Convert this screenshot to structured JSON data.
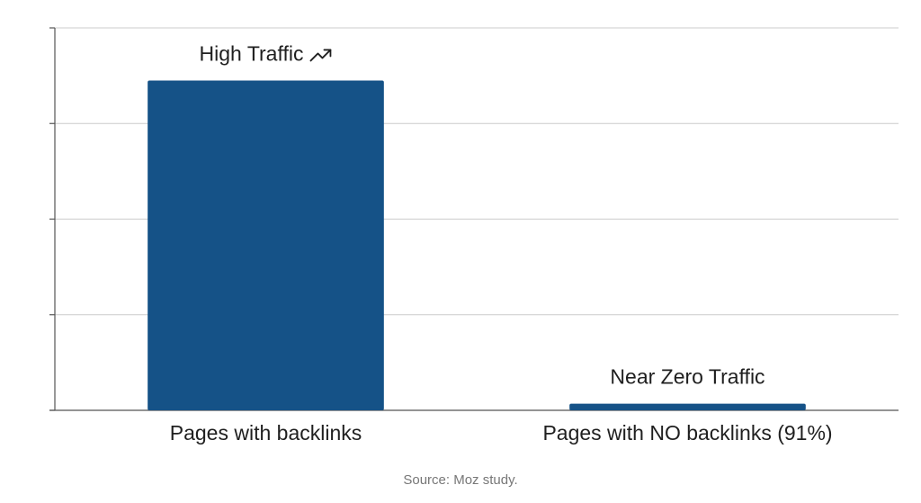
{
  "chart_data": {
    "type": "bar",
    "categories": [
      "Pages with backlinks",
      "Pages with NO backlinks (91%)"
    ],
    "values": [
      3.45,
      0.07
    ],
    "data_labels": [
      "High Traffic",
      "Near Zero Traffic"
    ],
    "data_label_icons": [
      "trending-up-icon",
      ""
    ],
    "ylim": [
      0,
      4
    ],
    "y_ticks": [
      0,
      1,
      2,
      3,
      4
    ],
    "grid": true,
    "tick_labels_visible": false,
    "title": "",
    "xlabel": "",
    "ylabel": "",
    "source": "Source: Moz study.",
    "colors": {
      "bar": "#155287",
      "grid": "#cccccc",
      "axis": "#555555",
      "text": "#1f1f1f",
      "source": "#777777"
    }
  }
}
